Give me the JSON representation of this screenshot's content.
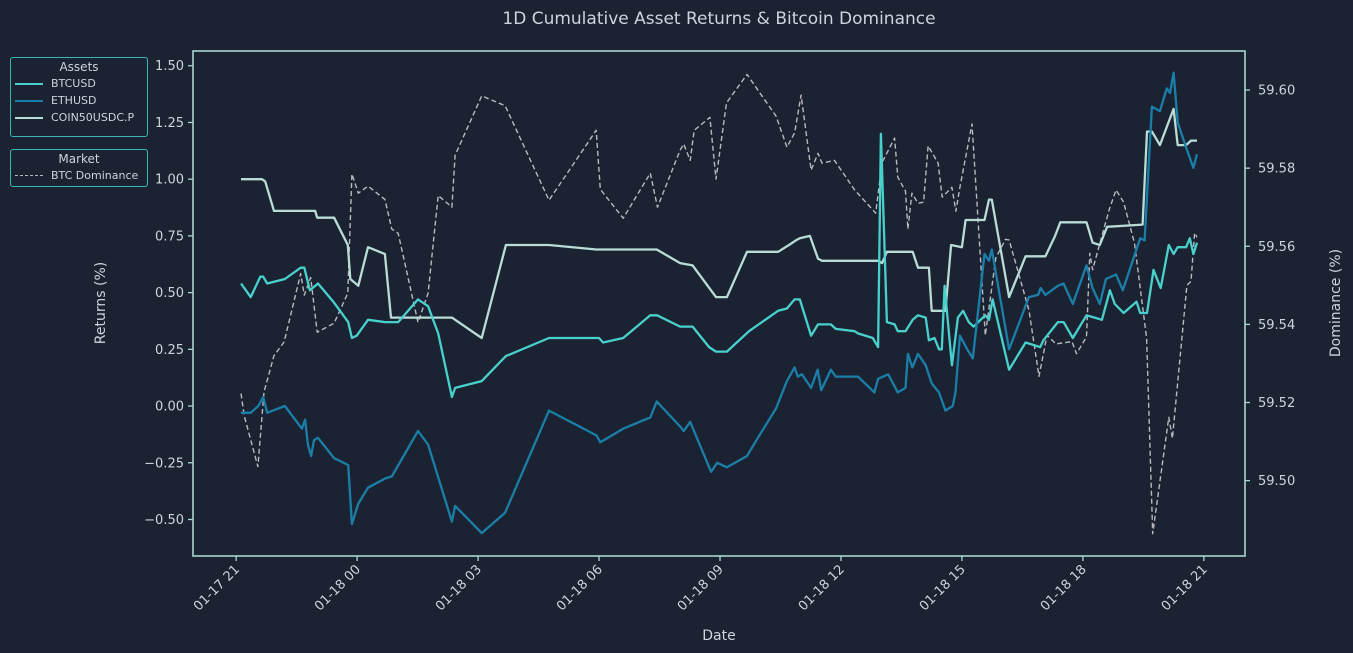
{
  "chart_data": {
    "type": "line",
    "title": "1D Cumulative Asset Returns & Bitcoin Dominance",
    "xlabel": "Date",
    "ylabel": "Returns (%)",
    "ylabel_right": "Dominance (%)",
    "x_units": "hours since 01-17 21:00",
    "xlim": [
      -1.07,
      25.02
    ],
    "ylim": [
      -0.661,
      1.565
    ],
    "ylim_right": [
      59.4807,
      59.61
    ],
    "grid": false,
    "x_ticks": [
      {
        "value": 0,
        "label": "01-17 21"
      },
      {
        "value": 3,
        "label": "01-18 00"
      },
      {
        "value": 6,
        "label": "01-18 03"
      },
      {
        "value": 9,
        "label": "01-18 06"
      },
      {
        "value": 12,
        "label": "01-18 09"
      },
      {
        "value": 15,
        "label": "01-18 12"
      },
      {
        "value": 18,
        "label": "01-18 15"
      },
      {
        "value": 21,
        "label": "01-18 18"
      },
      {
        "value": 24,
        "label": "01-18 21"
      }
    ],
    "y_ticks": [
      {
        "value": 1.5,
        "label": "1.50"
      },
      {
        "value": 1.25,
        "label": "1.25"
      },
      {
        "value": 1.0,
        "label": "1.00"
      },
      {
        "value": 0.75,
        "label": "0.75"
      },
      {
        "value": 0.5,
        "label": "0.50"
      },
      {
        "value": 0.25,
        "label": "0.25"
      },
      {
        "value": 0.0,
        "label": "0.00"
      },
      {
        "value": -0.25,
        "label": "−0.25"
      },
      {
        "value": -0.5,
        "label": "−0.50"
      }
    ],
    "y_ticks_right": [
      {
        "value": 59.6,
        "label": "59.60"
      },
      {
        "value": 59.58,
        "label": "59.58"
      },
      {
        "value": 59.56,
        "label": "59.56"
      },
      {
        "value": 59.54,
        "label": "59.54"
      },
      {
        "value": 59.52,
        "label": "59.52"
      },
      {
        "value": 59.5,
        "label": "59.50"
      }
    ],
    "legends": [
      {
        "title": "Assets",
        "placement": "upper-left outside",
        "entries": [
          "BTCUSD",
          "ETHUSD",
          "COIN50USDC.P"
        ]
      },
      {
        "title": "Market",
        "placement": "upper-left outside",
        "entries": [
          "BTC Dominance"
        ]
      }
    ],
    "series": [
      {
        "name": "BTCUSD",
        "axis": "left",
        "color": "#48d1cc",
        "style": "solid",
        "x": [
          0.12,
          0.36,
          0.6,
          0.67,
          0.77,
          1.21,
          1.6,
          1.69,
          1.83,
          2.03,
          2.41,
          2.78,
          2.87,
          2.99,
          3.27,
          3.69,
          4.02,
          4.51,
          4.76,
          5.01,
          5.35,
          5.43,
          6.09,
          6.69,
          7.76,
          9.0,
          9.1,
          9.6,
          10.27,
          10.44,
          11.01,
          11.32,
          11.73,
          11.9,
          12.17,
          12.72,
          13.44,
          13.66,
          13.85,
          13.98,
          14.26,
          14.43,
          14.75,
          14.87,
          15.34,
          15.42,
          15.79,
          15.92,
          15.99,
          16.14,
          16.33,
          16.41,
          16.6,
          16.78,
          16.91,
          17.1,
          17.18,
          17.32,
          17.43,
          17.5,
          17.57,
          17.75,
          17.9,
          18.03,
          18.17,
          18.29,
          18.58,
          18.67,
          18.76,
          19.17,
          19.58,
          19.94,
          20.02,
          20.38,
          20.52,
          20.75,
          21.09,
          21.29,
          21.47,
          21.67,
          21.79,
          22.01,
          22.33,
          22.42,
          22.59,
          22.75,
          22.93,
          23.13,
          23.25,
          23.35,
          23.56,
          23.65,
          23.74,
          23.83
        ],
        "y": [
          0.54,
          0.48,
          0.57,
          0.57,
          0.54,
          0.56,
          0.61,
          0.61,
          0.51,
          0.54,
          0.46,
          0.37,
          0.3,
          0.31,
          0.38,
          0.37,
          0.37,
          0.47,
          0.44,
          0.32,
          0.04,
          0.08,
          0.11,
          0.22,
          0.3,
          0.3,
          0.28,
          0.3,
          0.4,
          0.4,
          0.35,
          0.35,
          0.26,
          0.24,
          0.24,
          0.33,
          0.42,
          0.43,
          0.47,
          0.47,
          0.31,
          0.36,
          0.36,
          0.34,
          0.33,
          0.32,
          0.3,
          0.26,
          1.2,
          0.37,
          0.36,
          0.33,
          0.33,
          0.38,
          0.4,
          0.39,
          0.29,
          0.3,
          0.25,
          0.25,
          0.53,
          0.18,
          0.39,
          0.42,
          0.37,
          0.35,
          0.4,
          0.38,
          0.47,
          0.16,
          0.28,
          0.26,
          0.29,
          0.37,
          0.37,
          0.3,
          0.4,
          0.39,
          0.38,
          0.51,
          0.45,
          0.41,
          0.46,
          0.41,
          0.41,
          0.6,
          0.52,
          0.71,
          0.67,
          0.7,
          0.7,
          0.74,
          0.67,
          0.72
        ]
      },
      {
        "name": "ETHUSD",
        "axis": "left",
        "color": "#1a7fa8",
        "style": "solid",
        "x": [
          0.12,
          0.36,
          0.55,
          0.67,
          0.77,
          1.21,
          1.63,
          1.71,
          1.78,
          1.86,
          1.93,
          2.03,
          2.43,
          2.78,
          2.87,
          3.03,
          3.27,
          3.69,
          3.86,
          4.51,
          4.76,
          5.35,
          5.43,
          6.09,
          6.67,
          7.76,
          8.94,
          9.03,
          9.6,
          10.27,
          10.43,
          11.01,
          11.1,
          11.26,
          11.78,
          11.93,
          12.17,
          12.67,
          12.94,
          13.39,
          13.66,
          13.85,
          13.93,
          14.03,
          14.26,
          14.42,
          14.51,
          14.75,
          14.87,
          15.42,
          15.83,
          15.92,
          16.17,
          16.41,
          16.6,
          16.66,
          16.77,
          16.91,
          17.1,
          17.25,
          17.43,
          17.59,
          17.77,
          17.84,
          17.95,
          18.13,
          18.27,
          18.56,
          18.67,
          18.74,
          19.17,
          19.66,
          19.89,
          19.95,
          20.07,
          20.38,
          20.52,
          20.75,
          21.09,
          21.24,
          21.42,
          21.57,
          21.82,
          21.99,
          22.42,
          22.53,
          22.71,
          22.91,
          23.08,
          23.16,
          23.25,
          23.35,
          23.58,
          23.74,
          23.83
        ],
        "y": [
          -0.03,
          -0.03,
          0.0,
          0.04,
          -0.03,
          0.0,
          -0.1,
          -0.06,
          -0.17,
          -0.22,
          -0.15,
          -0.14,
          -0.23,
          -0.26,
          -0.52,
          -0.43,
          -0.36,
          -0.32,
          -0.31,
          -0.11,
          -0.17,
          -0.51,
          -0.44,
          -0.56,
          -0.47,
          -0.02,
          -0.13,
          -0.16,
          -0.1,
          -0.05,
          0.02,
          -0.09,
          -0.11,
          -0.07,
          -0.29,
          -0.25,
          -0.27,
          -0.22,
          -0.14,
          -0.01,
          0.11,
          0.17,
          0.13,
          0.14,
          0.08,
          0.16,
          0.07,
          0.16,
          0.13,
          0.13,
          0.06,
          0.12,
          0.14,
          0.06,
          0.08,
          0.23,
          0.17,
          0.23,
          0.18,
          0.1,
          0.06,
          -0.02,
          0.0,
          0.06,
          0.31,
          0.25,
          0.21,
          0.67,
          0.64,
          0.69,
          0.25,
          0.48,
          0.49,
          0.52,
          0.49,
          0.53,
          0.54,
          0.45,
          0.62,
          0.52,
          0.45,
          0.56,
          0.58,
          0.51,
          0.74,
          0.73,
          1.32,
          1.3,
          1.4,
          1.38,
          1.47,
          1.25,
          1.13,
          1.05,
          1.11
        ]
      },
      {
        "name": "COIN50USDC.P",
        "axis": "left",
        "color": "#b8dcd6",
        "style": "solid",
        "x": [
          0.12,
          0.64,
          0.72,
          0.94,
          1.79,
          1.96,
          2.01,
          2.43,
          2.77,
          2.83,
          3.03,
          3.27,
          3.69,
          3.84,
          5.35,
          6.09,
          6.69,
          7.76,
          8.93,
          10.43,
          11.01,
          11.32,
          11.9,
          12.17,
          12.67,
          13.44,
          13.71,
          13.88,
          13.98,
          14.23,
          14.43,
          14.53,
          15.92,
          16.02,
          16.14,
          16.78,
          16.91,
          17.18,
          17.25,
          17.59,
          17.73,
          18.0,
          18.09,
          18.56,
          18.67,
          18.74,
          19.17,
          19.58,
          20.07,
          20.31,
          20.44,
          21.09,
          21.24,
          21.42,
          21.6,
          22.48,
          22.59,
          22.71,
          22.91,
          23.25,
          23.35,
          23.56,
          23.68,
          23.83
        ],
        "y": [
          1.0,
          1.0,
          0.99,
          0.86,
          0.86,
          0.86,
          0.83,
          0.83,
          0.71,
          0.56,
          0.53,
          0.7,
          0.67,
          0.39,
          0.39,
          0.3,
          0.71,
          0.71,
          0.69,
          0.69,
          0.63,
          0.62,
          0.48,
          0.48,
          0.68,
          0.68,
          0.71,
          0.73,
          0.74,
          0.75,
          0.65,
          0.64,
          0.64,
          0.63,
          0.68,
          0.68,
          0.61,
          0.61,
          0.42,
          0.42,
          0.71,
          0.7,
          0.82,
          0.82,
          0.91,
          0.91,
          0.48,
          0.66,
          0.66,
          0.75,
          0.81,
          0.81,
          0.72,
          0.71,
          0.79,
          0.8,
          1.21,
          1.21,
          1.15,
          1.31,
          1.15,
          1.15,
          1.17,
          1.17
        ]
      },
      {
        "name": "BTC Dominance",
        "axis": "right",
        "color": "#b9b9be",
        "style": "dashed",
        "x": [
          0.12,
          0.2,
          0.54,
          0.69,
          0.94,
          1.19,
          1.6,
          1.69,
          1.85,
          2.01,
          2.43,
          2.77,
          2.87,
          3.03,
          3.27,
          3.69,
          3.86,
          4.02,
          4.51,
          4.76,
          5.01,
          5.35,
          5.43,
          6.09,
          6.67,
          7.76,
          8.93,
          9.03,
          9.6,
          10.27,
          10.45,
          11.01,
          11.1,
          11.26,
          11.36,
          11.75,
          11.9,
          12.16,
          12.67,
          13.39,
          13.66,
          13.85,
          14.01,
          14.26,
          14.43,
          14.53,
          14.84,
          15.34,
          15.86,
          16.02,
          16.33,
          16.41,
          16.6,
          16.66,
          16.76,
          16.91,
          17.05,
          17.16,
          17.41,
          17.51,
          17.75,
          17.85,
          17.95,
          18.25,
          18.58,
          18.84,
          19.08,
          19.17,
          19.66,
          19.91,
          20.11,
          20.33,
          20.73,
          20.84,
          21.09,
          21.17,
          21.24,
          21.65,
          21.82,
          22.01,
          22.28,
          22.58,
          22.73,
          23.13,
          23.22,
          23.58,
          23.68,
          23.77,
          23.83
        ],
        "y": [
          59.5223,
          59.5166,
          59.5036,
          59.5227,
          59.532,
          59.5355,
          59.553,
          59.5475,
          59.552,
          59.538,
          59.5403,
          59.548,
          59.5785,
          59.5736,
          59.5754,
          59.572,
          59.5644,
          59.5633,
          59.5405,
          59.548,
          59.573,
          59.57,
          59.5833,
          59.5985,
          59.596,
          59.5718,
          59.5897,
          59.5746,
          59.5672,
          59.5787,
          59.57,
          59.5846,
          59.5862,
          59.582,
          59.5897,
          59.593,
          59.5772,
          59.5967,
          59.604,
          59.5933,
          59.5854,
          59.589,
          59.5987,
          59.5795,
          59.5838,
          59.5813,
          59.582,
          59.5744,
          59.5685,
          59.5815,
          59.5877,
          59.5777,
          59.5741,
          59.5644,
          59.5736,
          59.571,
          59.5713,
          59.5857,
          59.5813,
          59.5726,
          59.5751,
          59.569,
          59.5751,
          59.5913,
          59.5372,
          59.557,
          59.5618,
          59.5616,
          59.5437,
          59.5267,
          59.5372,
          59.535,
          59.5356,
          59.5325,
          59.5368,
          59.5582,
          59.554,
          59.5693,
          59.5744,
          59.5713,
          59.5608,
          59.5365,
          59.4864,
          59.5162,
          59.5108,
          59.55,
          59.551,
          59.5634,
          59.5623
        ]
      }
    ]
  }
}
